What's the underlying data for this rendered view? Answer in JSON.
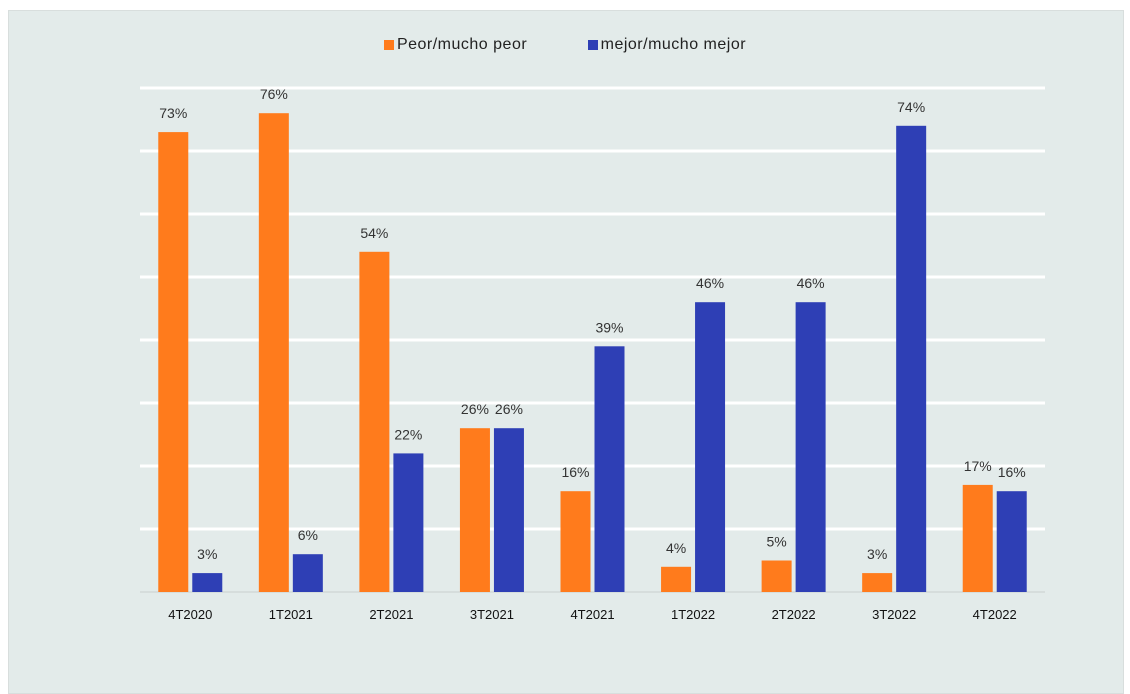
{
  "colors": {
    "background": "#e3ebea",
    "grid": "#ffffff",
    "series1": "#ff7b1c",
    "series2": "#2e3fb5"
  },
  "legend": {
    "items": [
      {
        "label": "Peor/mucho peor",
        "color": "#ff7b1c"
      },
      {
        "label": "mejor/mucho mejor",
        "color": "#2e3fb5"
      }
    ]
  },
  "chart_data": {
    "type": "bar",
    "categories": [
      "4T2020",
      "1T2021",
      "2T2021",
      "3T2021",
      "4T2021",
      "1T2022",
      "2T2022",
      "3T2022",
      "4T2022"
    ],
    "series": [
      {
        "name": "Peor/mucho peor",
        "values": [
          73,
          76,
          54,
          26,
          16,
          4,
          5,
          3,
          17
        ],
        "labels": [
          "73%",
          "76%",
          "54%",
          "26%",
          "16%",
          "4%",
          "5%",
          "3%",
          "17%"
        ]
      },
      {
        "name": "mejor/mucho mejor",
        "values": [
          3,
          6,
          22,
          26,
          39,
          46,
          46,
          74,
          16
        ],
        "labels": [
          "3%",
          "6%",
          "22%",
          "26%",
          "39%",
          "46%",
          "46%",
          "74%",
          "16%"
        ]
      }
    ],
    "title": "",
    "xlabel": "",
    "ylabel": "",
    "ylim": [
      0,
      80
    ],
    "grid": true,
    "legend_position": "top"
  }
}
